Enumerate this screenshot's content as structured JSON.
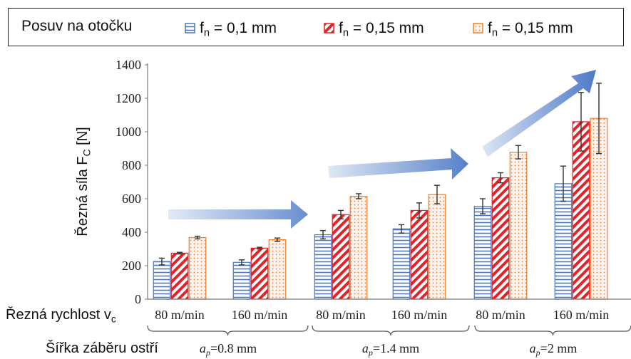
{
  "legend": {
    "title": "Posuv na otočku",
    "entries": [
      {
        "label": "f",
        "sub": "n",
        "rest": " = 0,1 mm",
        "pattern": "horizontal-lines",
        "color": "#4a78c2"
      },
      {
        "label": "f",
        "sub": "n",
        "rest": " = 0,15 mm",
        "pattern": "diagonal-hatch",
        "color": "#e2232a"
      },
      {
        "label": "f",
        "sub": "n",
        "rest": " = 0,15 mm",
        "pattern": "dots",
        "color": "#f07d2a"
      }
    ]
  },
  "chart_data": {
    "type": "bar",
    "ylabel": "Řezná síla F",
    "ylabel_sub": "C",
    "ylabel_unit": " [N]",
    "ylim": [
      0,
      1400
    ],
    "yticks": [
      0,
      200,
      400,
      600,
      800,
      1000,
      1200,
      1400
    ],
    "row1_label": "Řezná rychlost v",
    "row1_label_sub": "c",
    "row2_label": "Šířka záběru ostří",
    "categories": [
      "80 m/min",
      "160 m/min",
      "80 m/min",
      "160 m/min",
      "80 m/min",
      "160 m/min"
    ],
    "groups": [
      "=0.8 mm",
      "=1.4 mm",
      "=2 mm"
    ],
    "group_prefix": "a",
    "group_prefix_sub": "p",
    "series": [
      {
        "values": [
          225,
          220,
          385,
          420,
          555,
          690
        ],
        "errors": [
          20,
          15,
          25,
          25,
          45,
          105
        ],
        "pattern": "horizontal-lines",
        "color": "#4a78c2"
      },
      {
        "values": [
          275,
          305,
          505,
          530,
          725,
          1060
        ],
        "errors": [
          5,
          5,
          25,
          45,
          30,
          175
        ],
        "pattern": "diagonal-hatch",
        "color": "#e2232a"
      },
      {
        "values": [
          368,
          355,
          615,
          625,
          878,
          1080
        ],
        "errors": [
          8,
          10,
          15,
          55,
          40,
          210
        ],
        "pattern": "dots",
        "color": "#f07d2a"
      }
    ],
    "grid": false,
    "legend_position": "top"
  },
  "arrows": {
    "color": "#4472c4"
  }
}
